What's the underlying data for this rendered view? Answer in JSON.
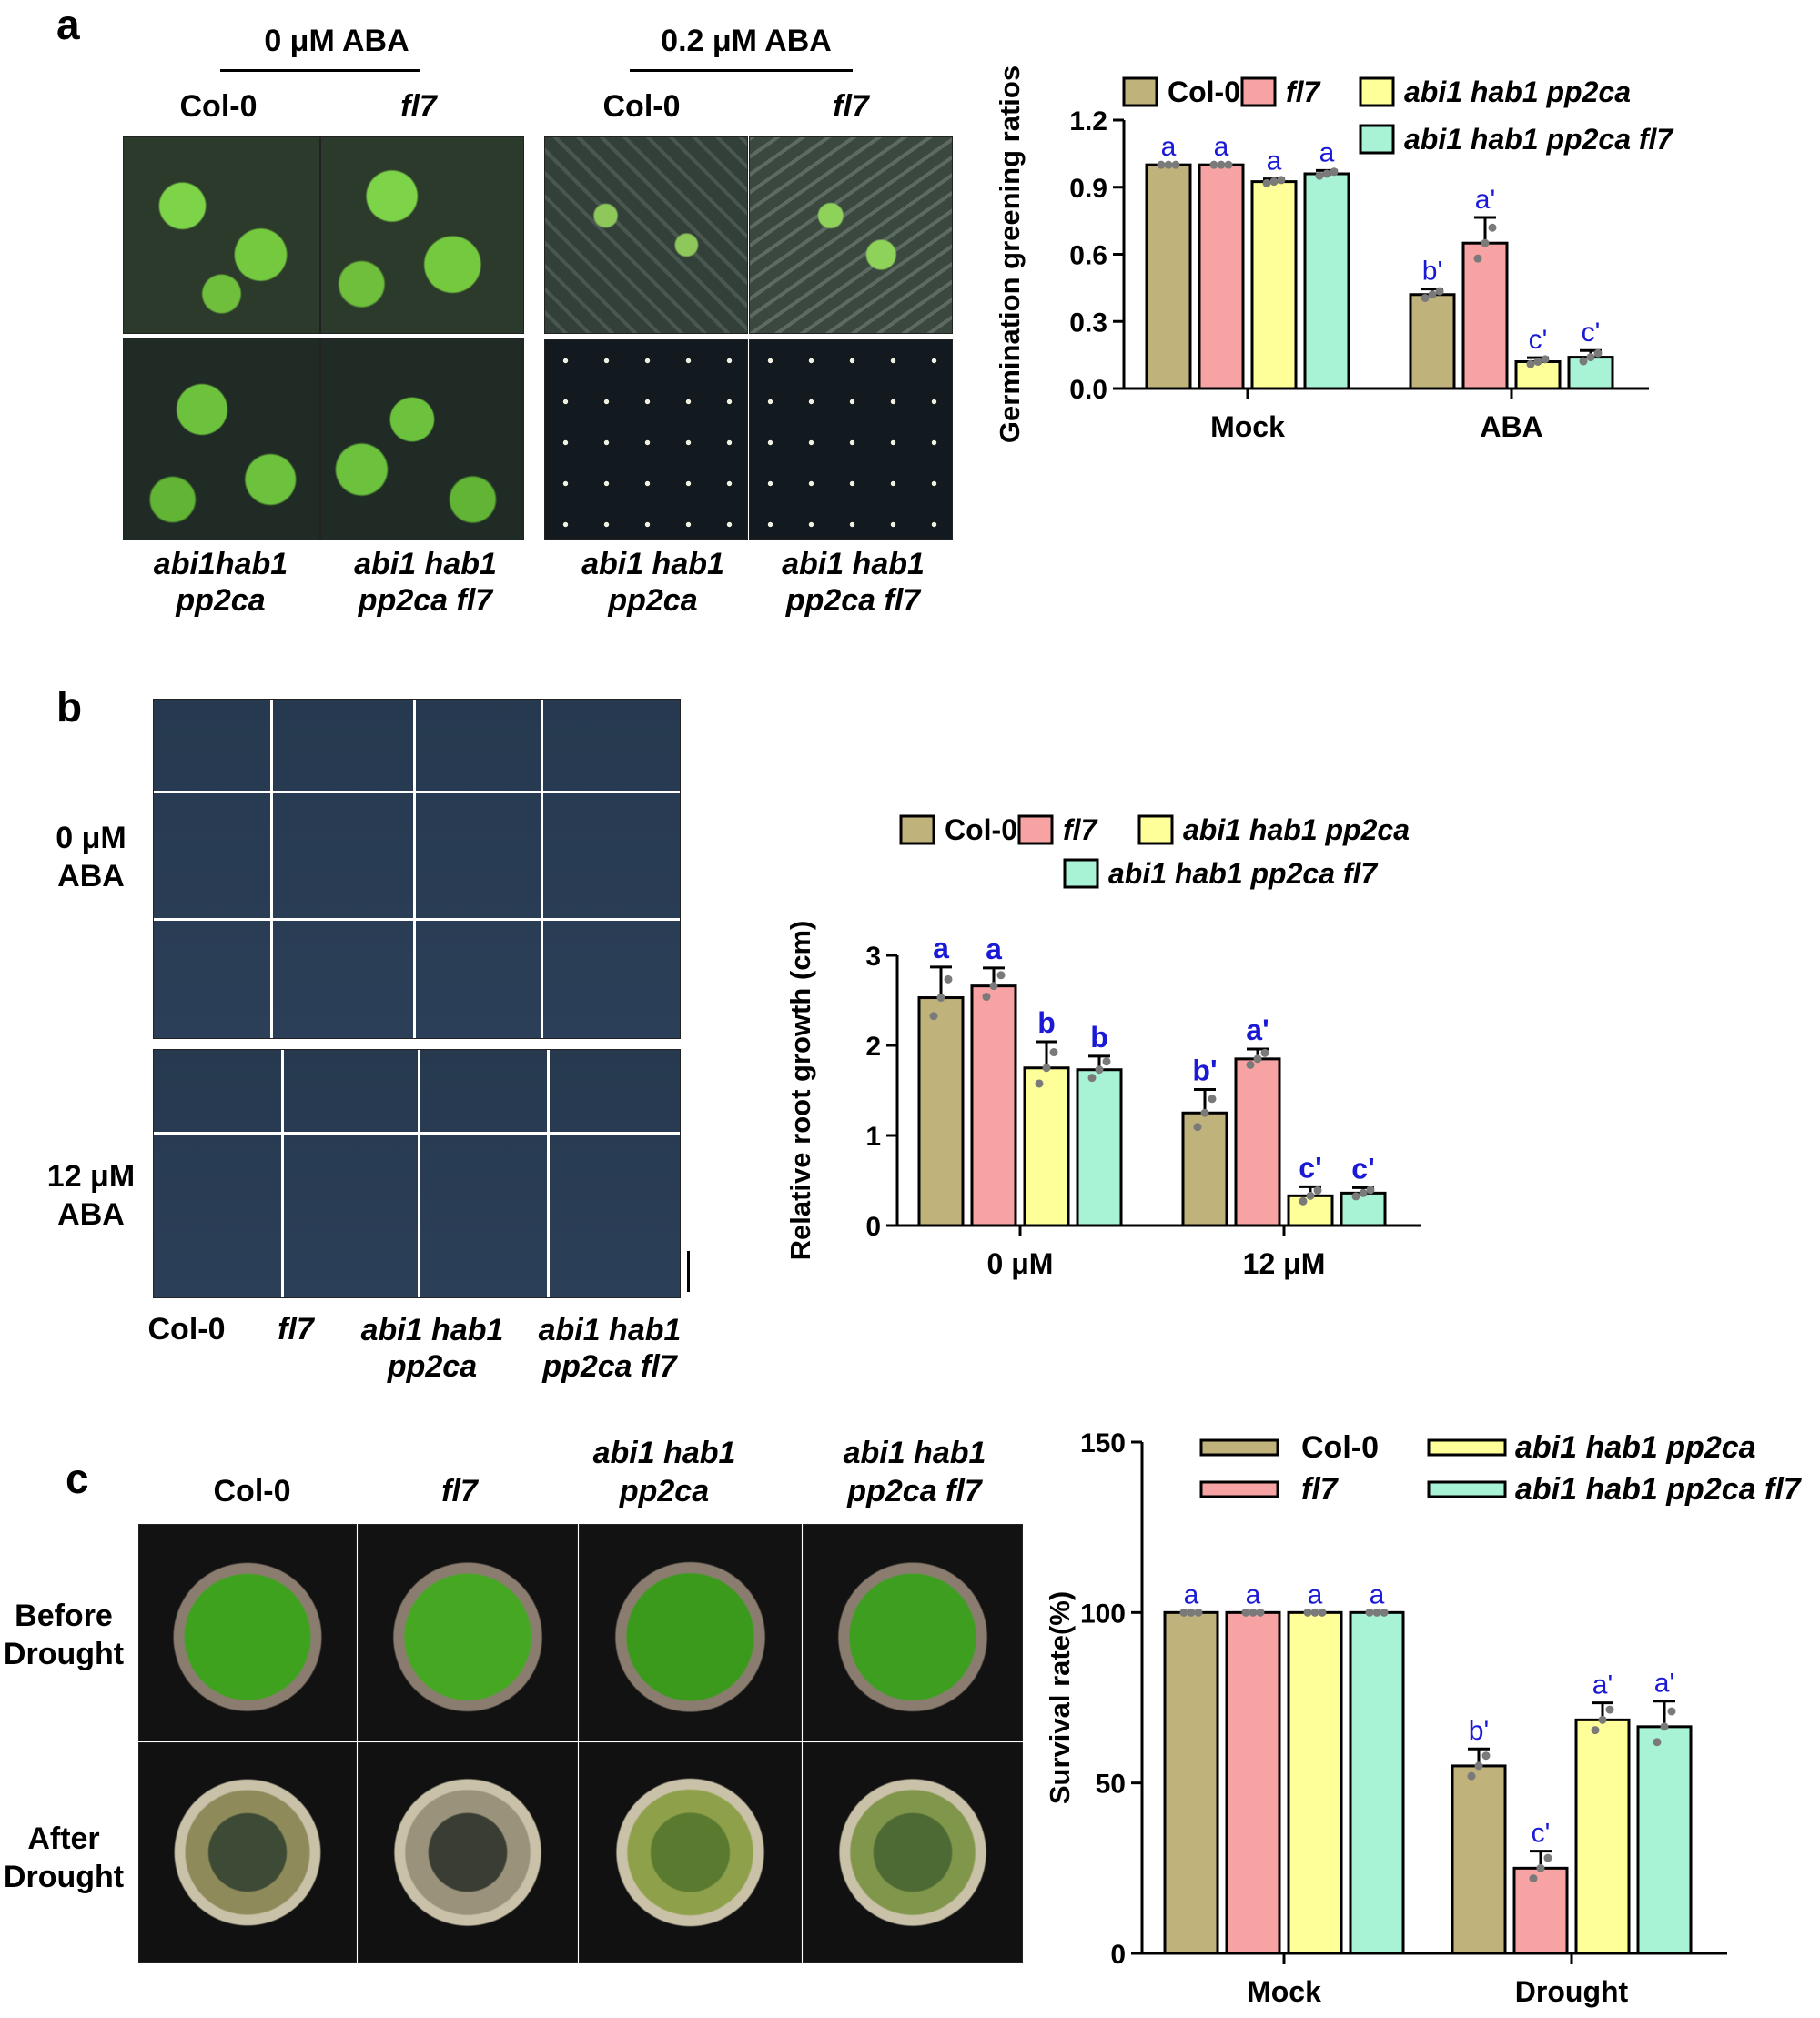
{
  "panels": {
    "a": {
      "label": "a",
      "conc_left": "0 μM ABA",
      "conc_right": "0.2 μM ABA",
      "top_genotypes": [
        "Col-0",
        "fl7",
        "Col-0",
        "fl7"
      ],
      "bottom_genotypes": [
        [
          "abi1hab1",
          "pp2ca"
        ],
        [
          "abi1 hab1",
          "pp2ca fl7"
        ],
        [
          "abi1 hab1",
          "pp2ca"
        ],
        [
          "abi1 hab1",
          "pp2ca fl7"
        ]
      ]
    },
    "b": {
      "label": "b",
      "row_labels": [
        [
          "0 μM",
          "ABA"
        ],
        [
          "12 μM",
          "ABA"
        ]
      ],
      "genotypes": [
        [
          "Col-0"
        ],
        [
          "fl7"
        ],
        [
          "abi1 hab1",
          "pp2ca"
        ],
        [
          "abi1 hab1",
          "pp2ca fl7"
        ]
      ]
    },
    "c": {
      "label": "c",
      "genotypes": [
        [
          "Col-0"
        ],
        [
          "fl7"
        ],
        [
          "abi1 hab1",
          "pp2ca"
        ],
        [
          "abi1 hab1",
          "pp2ca fl7"
        ]
      ],
      "row_labels": [
        [
          "Before",
          "Drought"
        ],
        [
          "After",
          "Drought"
        ]
      ]
    }
  },
  "chart_data": [
    {
      "id": "chart-a",
      "type": "bar",
      "ylabel": "Germination greening ratios",
      "ylim": [
        0,
        1.2
      ],
      "yticks": [
        "0.0",
        "0.3",
        "0.6",
        "0.9",
        "1.2"
      ],
      "ytick_values": [
        0,
        0.3,
        0.6,
        0.9,
        1.2
      ],
      "categories": [
        "Mock",
        "ABA"
      ],
      "series": [
        {
          "name": "Col-0",
          "color": "#bfb27a",
          "values": [
            1.0,
            0.42
          ],
          "errors": [
            0.0,
            0.025
          ],
          "letters": [
            "a",
            "b'"
          ]
        },
        {
          "name": "fl7",
          "color": "#f8a3a3",
          "values": [
            1.0,
            0.65
          ],
          "errors": [
            0.0,
            0.115
          ],
          "letters": [
            "a",
            "a'"
          ]
        },
        {
          "name": "abi1 hab1 pp2ca",
          "color": "#ffff99",
          "values": [
            0.925,
            0.12
          ],
          "errors": [
            0.012,
            0.018
          ],
          "letters": [
            "a",
            "c'"
          ]
        },
        {
          "name": "abi1 hab1 pp2ca fl7",
          "color": "#a8f2d6",
          "values": [
            0.96,
            0.14
          ],
          "errors": [
            0.015,
            0.03
          ],
          "letters": [
            "a",
            "c'"
          ]
        }
      ],
      "letter_color": "#1a1ad6",
      "legend": "top"
    },
    {
      "id": "chart-b",
      "type": "bar",
      "ylabel": "Relative root growth (cm)",
      "ylim": [
        0,
        3
      ],
      "yticks": [
        "0",
        "1",
        "2",
        "3"
      ],
      "ytick_values": [
        0,
        1,
        2,
        3
      ],
      "categories": [
        "0 μM",
        "12 μM"
      ],
      "series": [
        {
          "name": "Col-0",
          "color": "#bfb27a",
          "values": [
            2.53,
            1.25
          ],
          "errors": [
            0.34,
            0.26
          ],
          "letters": [
            "a",
            "b'"
          ]
        },
        {
          "name": "fl7",
          "color": "#f8a3a3",
          "values": [
            2.66,
            1.85
          ],
          "errors": [
            0.2,
            0.11
          ],
          "letters": [
            "a",
            "a'"
          ]
        },
        {
          "name": "abi1 hab1 pp2ca",
          "color": "#ffff99",
          "values": [
            1.75,
            0.33
          ],
          "errors": [
            0.29,
            0.1
          ],
          "letters": [
            "b",
            "c'"
          ]
        },
        {
          "name": "abi1 hab1 pp2ca fl7",
          "color": "#a8f2d6",
          "values": [
            1.73,
            0.36
          ],
          "errors": [
            0.15,
            0.06
          ],
          "letters": [
            "b",
            "c'"
          ]
        }
      ],
      "letter_color": "#1a1ad6",
      "legend": "top"
    },
    {
      "id": "chart-c",
      "type": "bar",
      "ylabel": "Survival rate(%)",
      "ylim": [
        0,
        150
      ],
      "yticks": [
        "0",
        "50",
        "100",
        "150"
      ],
      "ytick_values": [
        0,
        50,
        100,
        150
      ],
      "categories": [
        "Mock",
        "Drought"
      ],
      "series": [
        {
          "name": "Col-0",
          "color": "#bfb27a",
          "values": [
            100,
            55
          ],
          "errors": [
            0,
            5
          ],
          "letters": [
            "a",
            "b'"
          ]
        },
        {
          "name": "fl7",
          "color": "#f8a3a3",
          "values": [
            100,
            25
          ],
          "errors": [
            0,
            5
          ],
          "letters": [
            "a",
            "c'"
          ]
        },
        {
          "name": "abi1 hab1 pp2ca",
          "color": "#ffff99",
          "values": [
            100,
            68.5
          ],
          "errors": [
            0,
            5
          ],
          "letters": [
            "a",
            "a'"
          ]
        },
        {
          "name": "abi1 hab1 pp2ca fl7",
          "color": "#a8f2d6",
          "values": [
            100,
            66.5
          ],
          "errors": [
            0,
            7.5
          ],
          "letters": [
            "a",
            "a'"
          ]
        }
      ],
      "letter_color": "#1a1ad6",
      "legend": "top"
    }
  ]
}
